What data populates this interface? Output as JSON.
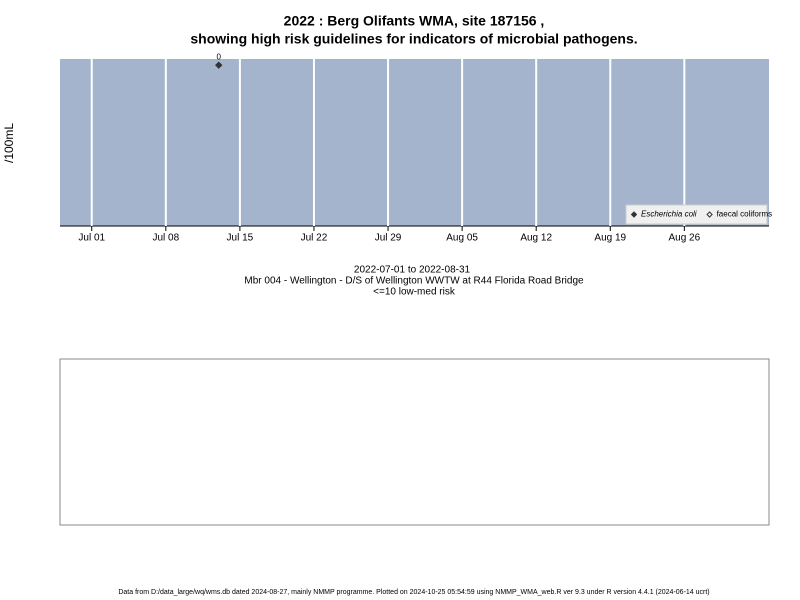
{
  "chart_data": {
    "type": "scatter",
    "title": "2022 : Berg Olifants WMA, site 187156 ,",
    "subtitle": "showing high risk guidelines for indicators of microbial pathogens.",
    "y_label": "/100mL",
    "x": [
      "2022-07-13"
    ],
    "series": [
      {
        "name": "Escherichia coli",
        "color": "#333333",
        "marker": "filled-diamond",
        "values": [
          0
        ],
        "value_labels": [
          "0"
        ]
      },
      {
        "name": "faecal coliforms",
        "color": "#333333",
        "marker": "open-diamond",
        "values": []
      }
    ],
    "xlim": [
      "2022-06-28",
      "2022-09-03"
    ],
    "xticks": [
      {
        "value": "2022-07-01",
        "label": "Jul 01"
      },
      {
        "value": "2022-07-08",
        "label": "Jul 08"
      },
      {
        "value": "2022-07-15",
        "label": "Jul 15"
      },
      {
        "value": "2022-07-22",
        "label": "Jul 22"
      },
      {
        "value": "2022-07-29",
        "label": "Jul 29"
      },
      {
        "value": "2022-08-05",
        "label": "Aug 05"
      },
      {
        "value": "2022-08-12",
        "label": "Aug 12"
      },
      {
        "value": "2022-08-19",
        "label": "Aug 19"
      },
      {
        "value": "2022-08-26",
        "label": "Aug 26"
      }
    ],
    "ylim": [
      -26,
      1
    ],
    "grid": true,
    "background": "#a3b4cc",
    "legend_position": "bottom-right",
    "caption": [
      "2022-07-01 to 2022-08-31",
      "Mbr 004 - Wellington - D/S of Wellington WWTW at R44 Florida Road Bridge",
      "<=10 low-med risk"
    ],
    "footer": "Data from D:/data_large/wq/wms.db dated 2024-08-27, mainly NMMP programme. Plotted on 2024-10-25 05:54:59 using NMMP_WMA_web.R ver 9.3 under R version 4.4.1 (2024-06-14 ucrt)"
  }
}
